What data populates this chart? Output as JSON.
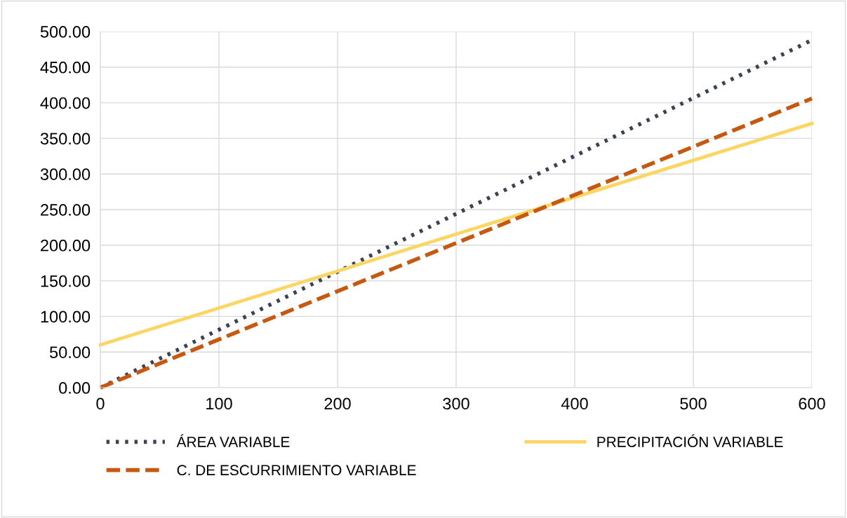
{
  "chart_data": {
    "type": "line",
    "x": [
      0,
      600
    ],
    "series": [
      {
        "name": "ÁREA VARIABLE",
        "color": "#3b4252",
        "line_style": "dotted",
        "values": [
          0,
          488
        ]
      },
      {
        "name": "PRECIPITACIÓN VARIABLE",
        "color": "#fcd664",
        "line_style": "solid",
        "values": [
          60,
          371
        ]
      },
      {
        "name": "C. DE ESCURRIMIENTO VARIABLE",
        "color": "#c65911",
        "line_style": "dashed",
        "values": [
          0,
          406
        ]
      }
    ],
    "xlim": [
      0,
      600
    ],
    "xticks": [
      0,
      100,
      200,
      300,
      400,
      500,
      600
    ],
    "ylim": [
      0,
      500
    ],
    "yticks": [
      {
        "value": 0,
        "label": "0.00"
      },
      {
        "value": 50,
        "label": "50.00"
      },
      {
        "value": 100,
        "label": "100.00"
      },
      {
        "value": 150,
        "label": "150.00"
      },
      {
        "value": 200,
        "label": "200.00"
      },
      {
        "value": 250,
        "label": "250.00"
      },
      {
        "value": 300,
        "label": "300.00"
      },
      {
        "value": 350,
        "label": "350.00"
      },
      {
        "value": 400,
        "label": "400.00"
      },
      {
        "value": 450,
        "label": "450.00"
      },
      {
        "value": 500,
        "label": "500.00"
      }
    ],
    "grid": true,
    "legend": "bottom",
    "marker": "none"
  }
}
